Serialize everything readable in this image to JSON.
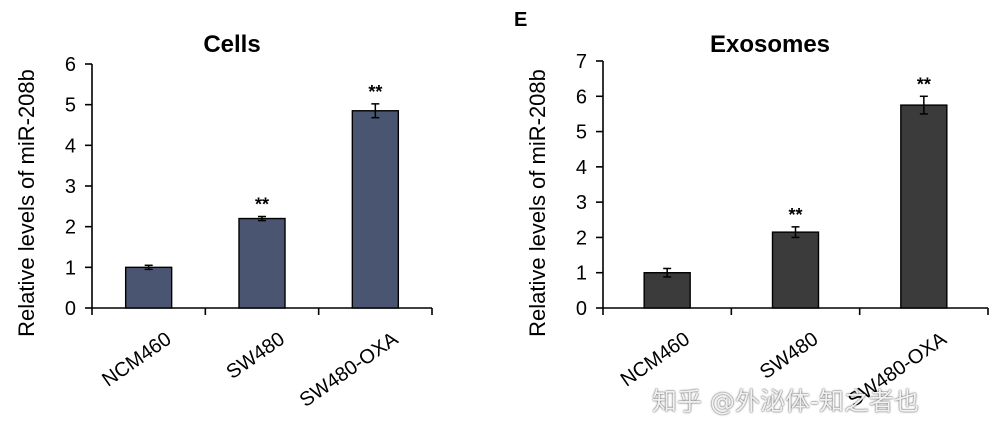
{
  "chart_data": [
    {
      "type": "bar",
      "title": "Cells",
      "ylabel": "Relative levels of miR-208b",
      "xlabel": "",
      "categories": [
        "NCM460",
        "SW480",
        "SW480-OXA"
      ],
      "values": [
        1.0,
        2.2,
        4.85
      ],
      "errors": [
        0.05,
        0.05,
        0.17
      ],
      "annotations": [
        "",
        "**",
        "**"
      ],
      "ylim": [
        0,
        6
      ],
      "yticks": [
        "0",
        "1",
        "2",
        "3",
        "4",
        "5",
        "6"
      ],
      "bar_color": "#4a5572",
      "grid": false,
      "legend": "none"
    },
    {
      "type": "bar",
      "panel_label": "E",
      "title": "Exosomes",
      "ylabel": "Relative levels of miR-208b",
      "xlabel": "",
      "categories": [
        "NCM460",
        "SW480",
        "SW480-OXA"
      ],
      "values": [
        1.0,
        2.15,
        5.75
      ],
      "errors": [
        0.12,
        0.15,
        0.25
      ],
      "annotations": [
        "",
        "**",
        "**"
      ],
      "ylim": [
        0,
        7
      ],
      "yticks": [
        "0",
        "1",
        "2",
        "3",
        "4",
        "5",
        "6",
        "7"
      ],
      "bar_color": "#3b3b3b",
      "grid": false,
      "legend": "none"
    }
  ],
  "watermark": "知乎 @外泌体-知之者也"
}
